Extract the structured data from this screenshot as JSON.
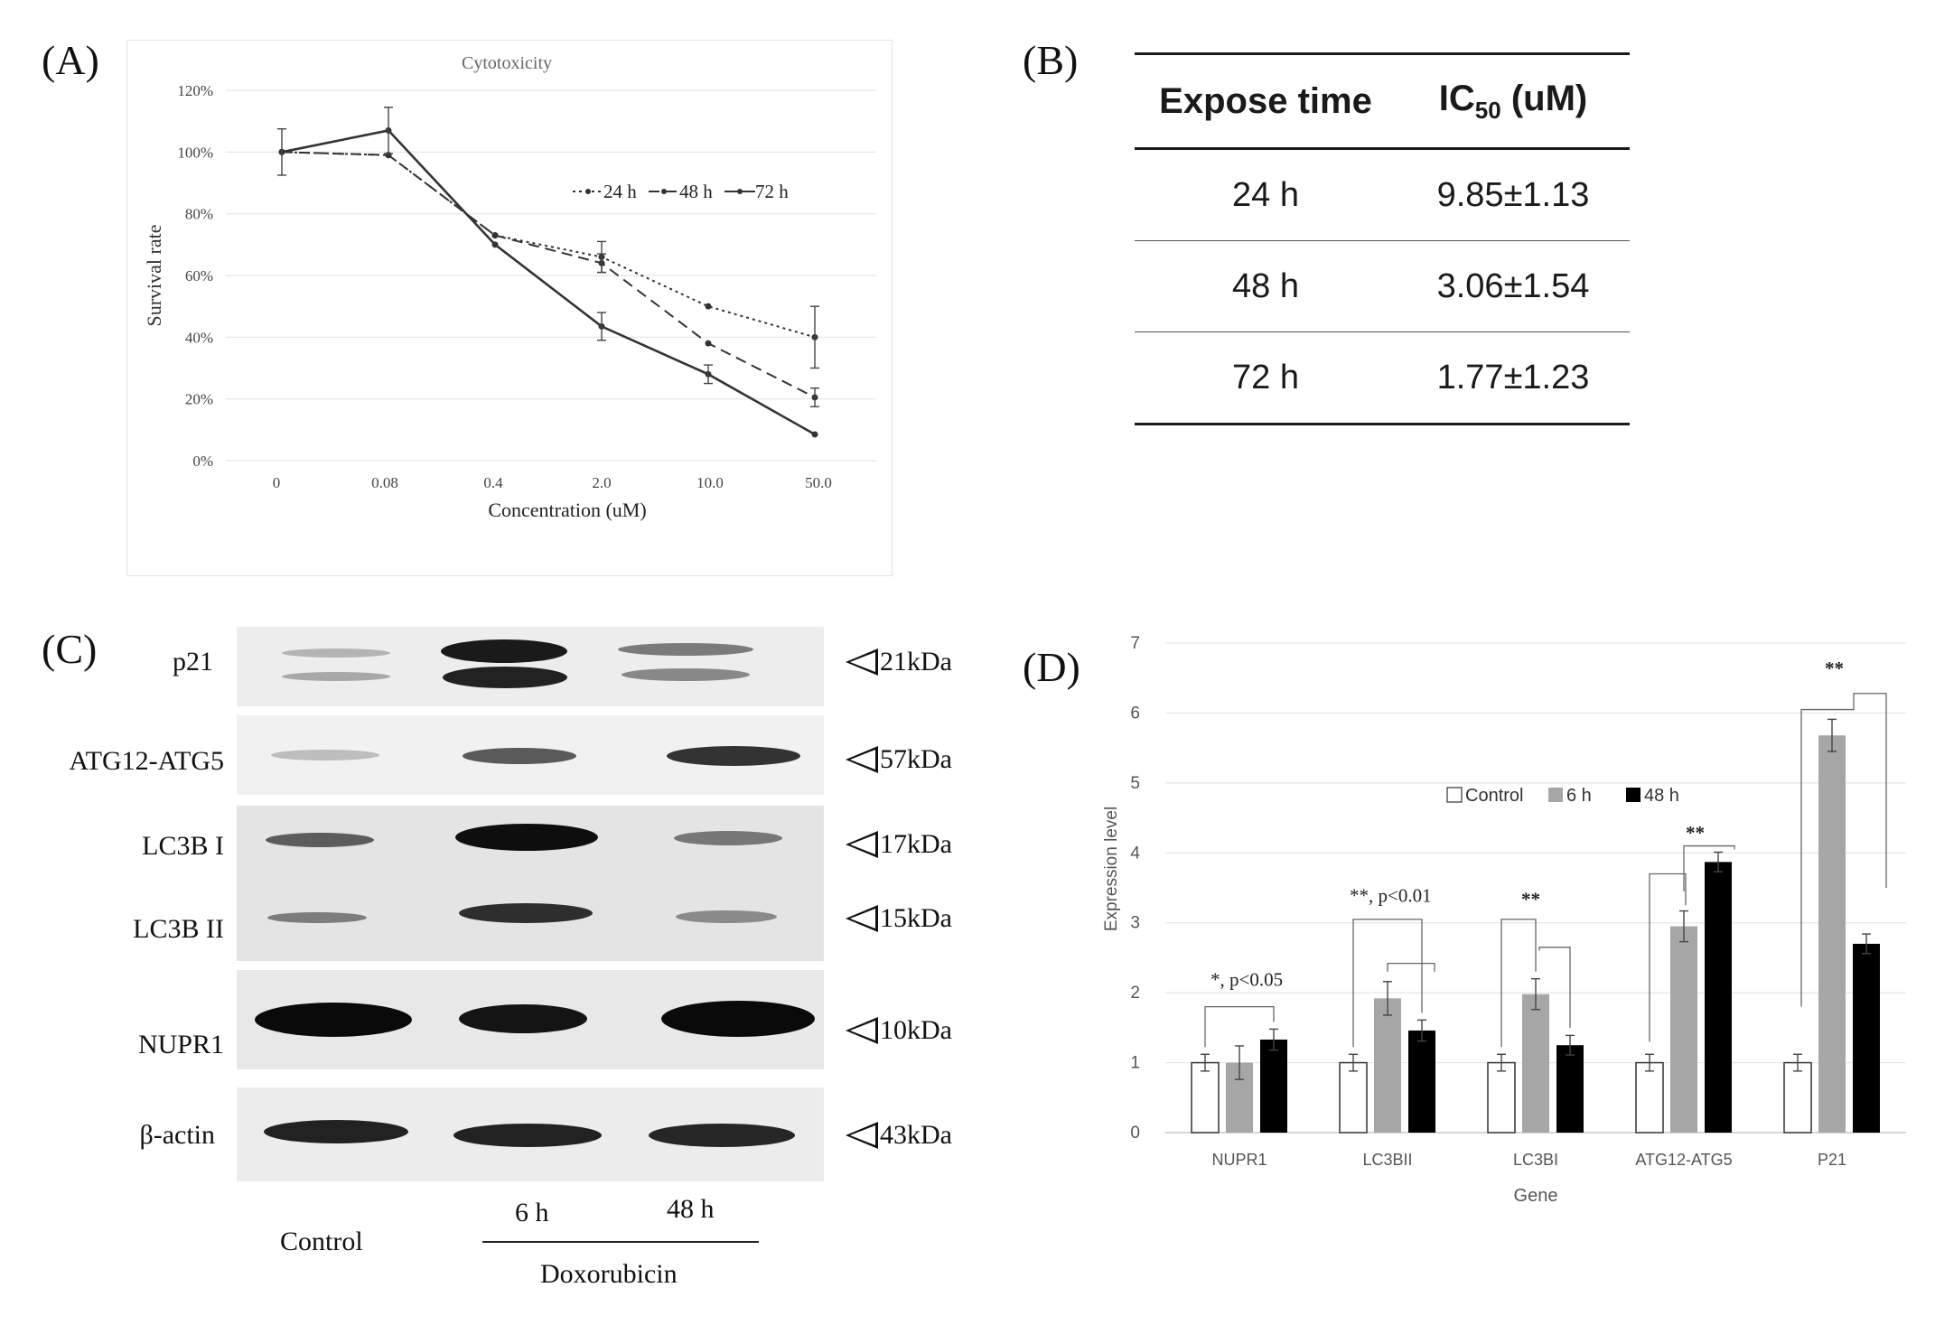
{
  "panel_labels": {
    "a": "(A)",
    "b": "(B)",
    "c": "(C)",
    "d": "(D)"
  },
  "chart_data": [
    {
      "type": "line",
      "title": "Cytotoxicity",
      "xlabel": "Concentration (uM)",
      "ylabel": "Survival rate",
      "categories": [
        "0",
        "0.08",
        "0.4",
        "2.0",
        "10.0",
        "50.0"
      ],
      "y_ticks": [
        "0%",
        "20%",
        "40%",
        "60%",
        "80%",
        "100%",
        "120%"
      ],
      "ylim": [
        0,
        120
      ],
      "series": [
        {
          "name": "24 h",
          "style": "dotted",
          "values": [
            100,
            99,
            73,
            66,
            50,
            40
          ],
          "errors": [
            0,
            0,
            0,
            5,
            0,
            10
          ]
        },
        {
          "name": "48 h",
          "style": "dashed",
          "values": [
            100,
            99,
            73,
            64,
            38,
            20.5
          ],
          "errors": [
            0,
            0,
            0,
            3,
            0,
            3
          ]
        },
        {
          "name": "72 h",
          "style": "solid",
          "values": [
            100,
            107,
            70,
            43.5,
            28,
            8.5
          ],
          "errors": [
            7.5,
            7.5,
            0,
            4.5,
            3,
            0
          ]
        }
      ],
      "legend_position": "right-middle"
    },
    {
      "type": "table",
      "columns": [
        "Expose time",
        "IC50 (uM)"
      ],
      "header": {
        "col1": "Expose time",
        "col2_main": "IC",
        "col2_sub": "50",
        "col2_rest": " (uM)"
      },
      "rows": [
        {
          "time": "24 h",
          "ic50": "9.85±1.13"
        },
        {
          "time": "48 h",
          "ic50": "3.06±1.54"
        },
        {
          "time": "72 h",
          "ic50": "1.77±1.23"
        }
      ]
    },
    {
      "type": "bar",
      "title": "",
      "xlabel": "Gene",
      "ylabel": "Expression level",
      "categories": [
        "NUPR1",
        "LC3BII",
        "LC3BI",
        "ATG12-ATG5",
        "P21"
      ],
      "y_ticks": [
        "0",
        "1",
        "2",
        "3",
        "4",
        "5",
        "6",
        "7"
      ],
      "ylim": [
        0,
        7
      ],
      "series": [
        {
          "name": "Control",
          "color": "#ffffff",
          "values": [
            1.0,
            1.0,
            1.0,
            1.0,
            1.0
          ],
          "errors": [
            0.12,
            0.12,
            0.12,
            0.12,
            0.12
          ]
        },
        {
          "name": "6 h",
          "color": "#a6a6a6",
          "values": [
            1.0,
            1.92,
            1.98,
            2.95,
            5.68
          ],
          "errors": [
            0.24,
            0.24,
            0.22,
            0.22,
            0.23
          ]
        },
        {
          "name": "48 h",
          "color": "#000000",
          "values": [
            1.33,
            1.46,
            1.25,
            3.87,
            2.7
          ],
          "errors": [
            0.15,
            0.15,
            0.14,
            0.14,
            0.14
          ]
        }
      ],
      "annotations": [
        "*, p<0.05",
        "**, p<0.01",
        "**",
        "**",
        "**"
      ],
      "legend_position": "center"
    }
  ],
  "western_blot": {
    "proteins": [
      {
        "label": "p21",
        "kda": "21kDa"
      },
      {
        "label": "ATG12-ATG5",
        "kda": "57kDa"
      },
      {
        "label": "LC3B I",
        "kda": "17kDa"
      },
      {
        "label": "LC3B II",
        "kda": "15kDa"
      },
      {
        "label": "NUPR1",
        "kda": "10kDa"
      },
      {
        "label": "β-actin",
        "kda": "43kDa"
      }
    ],
    "lanes": {
      "control": "Control",
      "t6": "6 h",
      "t48": "48 h",
      "treatment": "Doxorubicin"
    }
  }
}
